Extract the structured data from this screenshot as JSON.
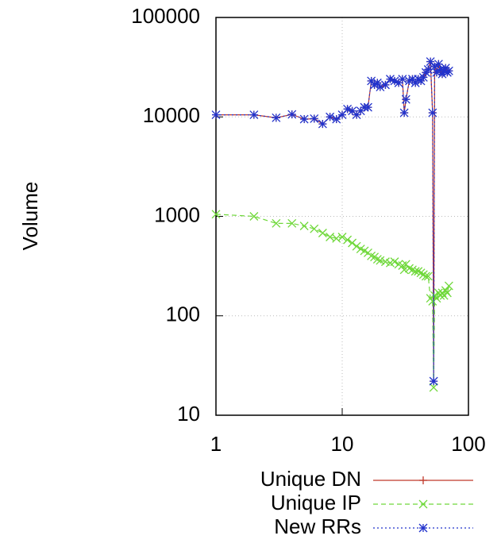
{
  "chart_data": {
    "type": "line",
    "y_label": "Volume",
    "x_log": true,
    "y_log": true,
    "grid": true,
    "legend": "bottom",
    "x": [
      1,
      2,
      3,
      4,
      5,
      6,
      7,
      8,
      9,
      10,
      11,
      12,
      13,
      14,
      15,
      16,
      17,
      18,
      19,
      20,
      22,
      24,
      26,
      28,
      30,
      31,
      32,
      34,
      36,
      38,
      40,
      42,
      44,
      46,
      48,
      50,
      52,
      53,
      54,
      56,
      58,
      60,
      62,
      64,
      66,
      68,
      70
    ],
    "series": [
      {
        "name": "Unique DN",
        "color": "#c0392b",
        "marker": "plus",
        "dash": "none",
        "values": [
          10500,
          10500,
          9800,
          10600,
          9500,
          9600,
          8500,
          10000,
          9500,
          10500,
          12000,
          11500,
          10500,
          11500,
          12500,
          12500,
          23000,
          21000,
          22000,
          20000,
          21000,
          24000,
          23000,
          22000,
          24000,
          11000,
          15000,
          23000,
          24000,
          22000,
          24000,
          23000,
          25000,
          28000,
          30000,
          36000,
          11000,
          22,
          32000,
          28000,
          34000,
          30000,
          27000,
          29000,
          31000,
          28000,
          29000
        ]
      },
      {
        "name": "Unique IP",
        "color": "#6fd83a",
        "marker": "cross",
        "dash": "6,4",
        "values": [
          1050,
          1000,
          850,
          850,
          800,
          750,
          680,
          620,
          600,
          620,
          580,
          540,
          500,
          470,
          450,
          430,
          400,
          390,
          370,
          360,
          350,
          340,
          350,
          330,
          320,
          290,
          330,
          300,
          290,
          280,
          280,
          270,
          260,
          250,
          250,
          150,
          140,
          19,
          160,
          150,
          170,
          160,
          170,
          160,
          180,
          170,
          200
        ]
      },
      {
        "name": "New RRs",
        "color": "#2233cc",
        "marker": "star",
        "dash": "2,3",
        "values": [
          10500,
          10500,
          9800,
          10600,
          9500,
          9600,
          8500,
          10000,
          9500,
          10500,
          12000,
          11500,
          10500,
          11500,
          12500,
          12500,
          23000,
          21000,
          22000,
          20000,
          21000,
          24000,
          23000,
          22000,
          24000,
          11000,
          15000,
          23000,
          24000,
          22000,
          24000,
          23000,
          25000,
          28000,
          30000,
          36000,
          11000,
          22,
          32000,
          28000,
          34000,
          30000,
          27000,
          29000,
          31000,
          28000,
          29000
        ]
      }
    ],
    "xlim": [
      1,
      100
    ],
    "ylim": [
      10,
      100000
    ],
    "xticks": [
      1,
      10,
      100
    ],
    "yticks": [
      10,
      100,
      1000,
      10000,
      100000
    ]
  }
}
